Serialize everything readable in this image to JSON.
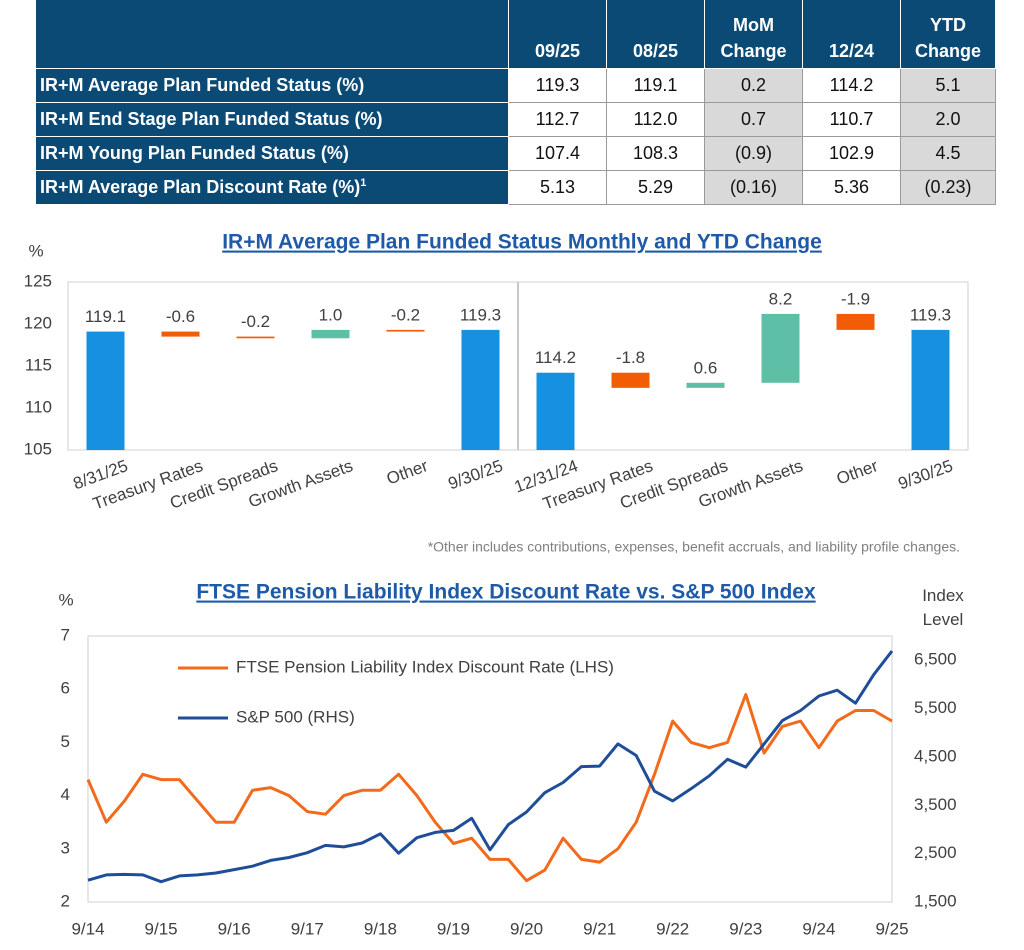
{
  "table": {
    "header": [
      "09/25",
      "08/25",
      "MoM Change",
      "12/24",
      "YTD Change"
    ],
    "rows": [
      {
        "label": "IR+M Average Plan Funded Status (%)",
        "cells": [
          "119.3",
          "119.1",
          "0.2",
          "114.2",
          "5.1"
        ]
      },
      {
        "label": "IR+M End Stage Plan Funded Status (%)",
        "cells": [
          "112.7",
          "112.0",
          "0.7",
          "110.7",
          "2.0"
        ]
      },
      {
        "label": "IR+M Young Plan Funded Status (%)",
        "cells": [
          "107.4",
          "108.3",
          "(0.9)",
          "102.9",
          "4.5"
        ]
      },
      {
        "label": "IR+M Average Plan Discount Rate (%)",
        "note": "1",
        "cells": [
          "5.13",
          "5.29",
          "(0.16)",
          "5.36",
          "(0.23)"
        ]
      }
    ]
  },
  "chart_data": [
    {
      "type": "waterfall",
      "title": "IR+M Average Plan Funded Status Monthly and YTD Change",
      "y_label": "%",
      "categories": [
        "8/31/25",
        "Treasury Rates",
        "Credit Spreads",
        "Growth Assets",
        "Other",
        "9/30/25",
        "12/31/24",
        "Treasury Rates",
        "Credit Spreads",
        "Growth Assets",
        "Other",
        "9/30/25"
      ],
      "values": [
        119.1,
        -0.6,
        -0.2,
        1.0,
        -0.2,
        119.3,
        114.2,
        -1.8,
        0.6,
        8.2,
        -1.9,
        119.3
      ],
      "value_labels": [
        "119.1",
        "-0.6",
        "-0.2",
        "1.0",
        "-0.2",
        "119.3",
        "114.2",
        "-1.8",
        "0.6",
        "8.2",
        "-1.9",
        "119.3"
      ],
      "totals": [
        true,
        false,
        false,
        false,
        false,
        true,
        true,
        false,
        false,
        false,
        false,
        true
      ],
      "colors": {
        "total": "#1690e0",
        "increase": "#5dbfa6",
        "decrease": "#f25c05"
      },
      "ylim": [
        105,
        125
      ],
      "yticks": [
        105,
        110,
        115,
        120,
        125
      ],
      "note": "*Other includes contributions, expenses, benefit accruals, and liability profile changes."
    },
    {
      "type": "line",
      "title": "FTSE Pension Liability Index Discount Rate vs. S&P 500 Index",
      "y_label": "%",
      "y2_label": "Index Level",
      "x": [
        "9/14",
        null,
        null,
        null,
        "9/15",
        null,
        null,
        null,
        "9/16",
        null,
        null,
        null,
        "9/17",
        null,
        null,
        null,
        "9/18",
        null,
        null,
        null,
        "9/19",
        null,
        null,
        null,
        "9/20",
        null,
        null,
        null,
        "9/21",
        null,
        null,
        null,
        "9/22",
        null,
        null,
        null,
        "9/23",
        null,
        null,
        null,
        "9/24",
        null,
        null,
        null,
        "9/25"
      ],
      "series": [
        {
          "name": "FTSE Pension Liability Index Discount Rate (LHS)",
          "color": "#f26a1b",
          "values": [
            4.3,
            3.5,
            3.9,
            4.4,
            4.3,
            4.3,
            3.9,
            3.5,
            3.5,
            4.1,
            4.15,
            4.0,
            3.7,
            3.65,
            4.0,
            4.1,
            4.1,
            4.4,
            4.0,
            3.5,
            3.1,
            3.2,
            2.8,
            2.8,
            2.4,
            2.6,
            3.2,
            2.8,
            2.75,
            3.0,
            3.5,
            4.4,
            5.4,
            5.0,
            4.9,
            5.0,
            5.9,
            4.8,
            5.3,
            5.4,
            4.9,
            5.4,
            5.6,
            5.6,
            5.4
          ]
        },
        {
          "name": "S&P 500 (RHS)",
          "color": "#1f4e99",
          "axis": "y2",
          "values": [
            1950,
            2060,
            2070,
            2060,
            1920,
            2040,
            2060,
            2100,
            2170,
            2240,
            2360,
            2420,
            2520,
            2670,
            2640,
            2720,
            2910,
            2510,
            2830,
            2940,
            2980,
            3230,
            2580,
            3100,
            3360,
            3760,
            3970,
            4300,
            4310,
            4770,
            4530,
            3790,
            3590,
            3840,
            4110,
            4450,
            4290,
            4770,
            5250,
            5460,
            5760,
            5880,
            5610,
            6200,
            6690
          ]
        }
      ],
      "ylim": [
        2,
        7
      ],
      "yticks": [
        2,
        3,
        4,
        5,
        6,
        7
      ],
      "y2lim": [
        1500,
        7000
      ],
      "y2ticks": [
        {
          "value": 1500,
          "label": "1,500"
        },
        {
          "value": 2500,
          "label": "2,500"
        },
        {
          "value": 3500,
          "label": "3,500"
        },
        {
          "value": 4500,
          "label": "4,500"
        },
        {
          "value": 5500,
          "label": "5,500"
        },
        {
          "value": 6500,
          "label": "6,500"
        }
      ]
    }
  ]
}
